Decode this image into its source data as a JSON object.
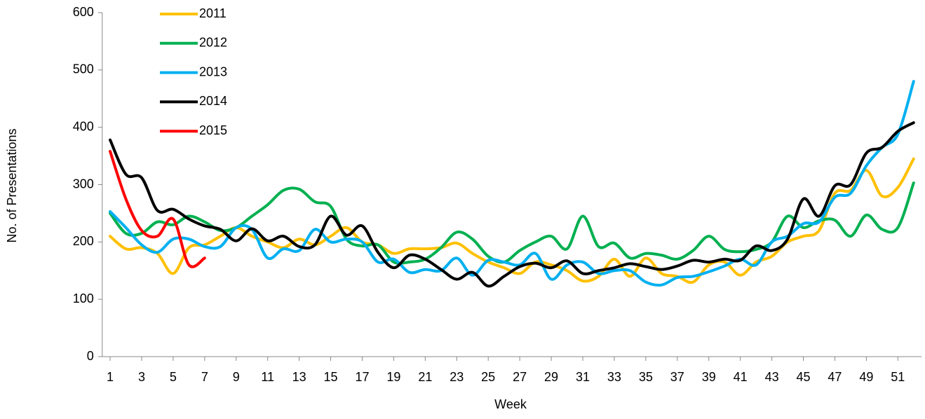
{
  "chart_data": {
    "type": "line",
    "x_label": "Week",
    "y_label": "No. of Presentations",
    "x": [
      1,
      2,
      3,
      4,
      5,
      6,
      7,
      8,
      9,
      10,
      11,
      12,
      13,
      14,
      15,
      16,
      17,
      18,
      19,
      20,
      21,
      22,
      23,
      24,
      25,
      26,
      27,
      28,
      29,
      30,
      31,
      32,
      33,
      34,
      35,
      36,
      37,
      38,
      39,
      40,
      41,
      42,
      43,
      44,
      45,
      46,
      47,
      48,
      49,
      50,
      51,
      52
    ],
    "xlim": [
      0.5,
      52.5
    ],
    "xticks": [
      1,
      3,
      5,
      7,
      9,
      11,
      13,
      15,
      17,
      19,
      21,
      23,
      25,
      27,
      29,
      31,
      33,
      35,
      37,
      39,
      41,
      43,
      45,
      47,
      49,
      51
    ],
    "ylim": [
      0,
      600
    ],
    "yticks": [
      0,
      100,
      200,
      300,
      400,
      500,
      600
    ],
    "legend": "top-left",
    "smooth": true,
    "series": [
      {
        "name": "2011",
        "color": "#ffc000",
        "values": [
          210,
          188,
          190,
          180,
          145,
          190,
          195,
          210,
          225,
          210,
          200,
          190,
          205,
          195,
          210,
          225,
          200,
          195,
          180,
          188,
          188,
          190,
          198,
          180,
          165,
          155,
          145,
          165,
          160,
          150,
          132,
          140,
          170,
          140,
          172,
          145,
          140,
          130,
          160,
          165,
          142,
          165,
          175,
          200,
          210,
          220,
          285,
          290,
          325,
          280,
          295,
          345
        ]
      },
      {
        "name": "2012",
        "color": "#00b050",
        "values": [
          250,
          215,
          215,
          235,
          230,
          245,
          235,
          220,
          225,
          245,
          265,
          290,
          292,
          270,
          262,
          205,
          193,
          195,
          165,
          165,
          170,
          190,
          217,
          205,
          175,
          165,
          185,
          200,
          210,
          188,
          245,
          192,
          198,
          172,
          180,
          177,
          170,
          185,
          210,
          187,
          183,
          187,
          200,
          245,
          225,
          237,
          238,
          210,
          247,
          222,
          225,
          303
        ]
      },
      {
        "name": "2013",
        "color": "#00b0f0",
        "values": [
          253,
          225,
          195,
          182,
          205,
          205,
          192,
          192,
          225,
          222,
          172,
          188,
          185,
          222,
          200,
          205,
          200,
          165,
          170,
          147,
          152,
          150,
          172,
          142,
          168,
          165,
          160,
          180,
          135,
          160,
          165,
          145,
          150,
          150,
          130,
          125,
          138,
          140,
          148,
          158,
          170,
          160,
          200,
          210,
          232,
          235,
          278,
          285,
          333,
          365,
          388,
          480
        ]
      },
      {
        "name": "2014",
        "color": "#000000",
        "values": [
          378,
          318,
          312,
          255,
          257,
          240,
          228,
          222,
          202,
          223,
          202,
          210,
          192,
          195,
          245,
          212,
          228,
          182,
          155,
          177,
          170,
          152,
          135,
          147,
          123,
          140,
          157,
          163,
          155,
          167,
          145,
          150,
          155,
          162,
          157,
          152,
          158,
          168,
          165,
          170,
          168,
          193,
          185,
          205,
          275,
          245,
          298,
          300,
          355,
          365,
          393,
          408
        ]
      },
      {
        "name": "2015",
        "color": "#ff0000",
        "values": [
          358,
          275,
          220,
          210,
          240,
          160,
          172,
          null,
          null,
          null,
          null,
          null,
          null,
          null,
          null,
          null,
          null,
          null,
          null,
          null,
          null,
          null,
          null,
          null,
          null,
          null,
          null,
          null,
          null,
          null,
          null,
          null,
          null,
          null,
          null,
          null,
          null,
          null,
          null,
          null,
          null,
          null,
          null,
          null,
          null,
          null,
          null,
          null,
          null,
          null,
          null,
          null
        ]
      }
    ]
  }
}
